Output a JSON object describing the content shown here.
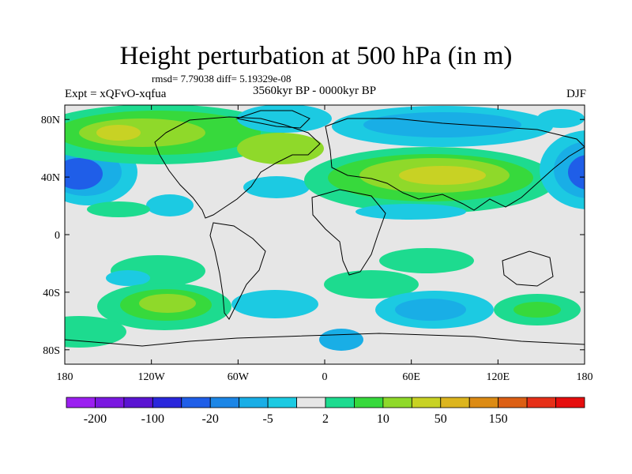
{
  "title": "Height perturbation at 500 hPa (in m)",
  "stats": "rmsd= 7.79038 diff= 5.19329e-08",
  "experiment": "Expt = xQFvO-xqfua",
  "period": "3560kyr BP - 0000kyr BP",
  "season": "DJF",
  "map": {
    "projection": "cylindrical equidistant",
    "lon_range": [
      -180,
      180
    ],
    "lat_range": [
      -90,
      90
    ],
    "lon_ticks": [
      {
        "value": -180,
        "label": "180"
      },
      {
        "value": -120,
        "label": "120W"
      },
      {
        "value": -60,
        "label": "60W"
      },
      {
        "value": 0,
        "label": "0"
      },
      {
        "value": 60,
        "label": "60E"
      },
      {
        "value": 120,
        "label": "120E"
      },
      {
        "value": 180,
        "label": "180"
      }
    ],
    "lat_ticks": [
      {
        "value": 80,
        "label": "80N"
      },
      {
        "value": 40,
        "label": "40N"
      },
      {
        "value": 0,
        "label": "0"
      },
      {
        "value": -40,
        "label": "40S"
      },
      {
        "value": -80,
        "label": "80S"
      }
    ]
  },
  "colorbar": {
    "colors": [
      "#9b1ff0",
      "#7a18e0",
      "#5a14d2",
      "#2a27dc",
      "#1f5ee8",
      "#1c86e6",
      "#19aee6",
      "#1ccae2",
      "#e6e6e6",
      "#1ddb8f",
      "#37d93c",
      "#8fd92a",
      "#c8d224",
      "#dcb51e",
      "#dc8b14",
      "#dc5f14",
      "#e63018",
      "#e60e0e"
    ],
    "labels": [
      "-200",
      "-100",
      "-20",
      "-5",
      "2",
      "10",
      "50",
      "150"
    ]
  },
  "field_colors": {
    "neg_strong": "#1f5ee8",
    "neg_mid": "#1c86e6",
    "neg_weak": "#19aee6",
    "neg_faint": "#1ccae2",
    "neutral": "#e6e6e6",
    "pos_faint": "#1ddb8f",
    "pos_weak": "#37d93c",
    "pos_mid": "#8fd92a",
    "pos_strong": "#c8d224",
    "pos_peak": "#dcb51e"
  }
}
